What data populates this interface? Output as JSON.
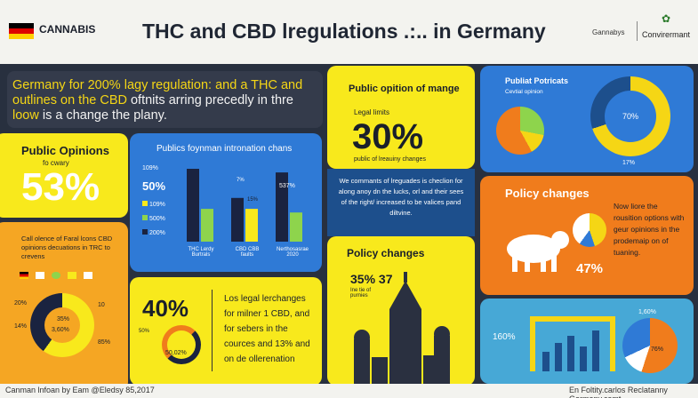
{
  "header": {
    "brand": "CANNABIS",
    "title": "THC and CBD lregulations .:.. in Germany",
    "right_label": "Gannabys",
    "right_label2": "Convirermant",
    "flag_colors": [
      "#000000",
      "#dd0000",
      "#ffce00"
    ]
  },
  "intro": {
    "text_start": "Germany for 200% lagy regulation: and a THC and outlines on the CBD",
    "text_mid": " oftnits arring precedly in thre ",
    "text_highlight": "loow",
    "text_end": " is a change the plany."
  },
  "public_opinions": {
    "title": "Public Opinions",
    "subtitle": "fo cwary",
    "value": "53%"
  },
  "blue_chart": {
    "title": "Publics foynman intronation chans",
    "legend": [
      "109%",
      "50%",
      "109%",
      "500%",
      "200%"
    ],
    "labels": [
      "7%",
      "15%",
      "537%"
    ],
    "categories": [
      "THC Lerdy\nBurtrals",
      "CBD CBB\nfaults",
      "Nerthosasrae\n2020"
    ]
  },
  "chart_data": {
    "type": "bar",
    "categories": [
      "THC Lerdy Burtrals",
      "CBD CBB faults",
      "Nerthosasrae 2020"
    ],
    "series": [
      {
        "values": [
          100,
          60,
          95
        ]
      },
      {
        "values": [
          45,
          45,
          40
        ]
      }
    ],
    "ylim": [
      0,
      100
    ]
  },
  "orange_left": {
    "title": "Call olence of Faral lcons CBD opinions decuations in TRC to crevens",
    "left_pct": "20%",
    "left_pct2": "14%",
    "inner1": "35%",
    "inner2": "3,60%",
    "right_pct": "10",
    "right_pct2": "85%"
  },
  "forty": {
    "value": "40%",
    "small": "50,02%",
    "left_small": "50%",
    "text": "Los legal lerchanges for milner 1 CBD, and for sebers in the cources and 13% and on de ollerenation"
  },
  "public_option": {
    "title": "Public opition of mange",
    "sub": "Legal limits",
    "value": "30%",
    "note": "public of lreauiny changes"
  },
  "dark_box": {
    "text": "We commants of lreguades is checlion for along anoy dn the lucks, orl and their sees of the right/ increased to be valices pand diltvine."
  },
  "policy_left": {
    "title": "Policy changes",
    "value": "35% 37",
    "sub": "Ine tie of purnies"
  },
  "public_potricats": {
    "title": "Publiat Potricats",
    "sub": "Cevtial opinion",
    "pct_ring": "70%",
    "pct_below": "17%"
  },
  "policy_right": {
    "title": "Policy changes",
    "text": "Now liore the rousition options with geur opinions in the prodemaip on of tuaning.",
    "pct": "47%"
  },
  "teal": {
    "left_pct": "160%",
    "top_pct": "1,60%",
    "right_pct": "76%"
  },
  "footer": {
    "left": "Canman lnfoan by Eam @Eledsy 85,2017",
    "right": "En Foltity.carlos Reclatanny Garmany.comt"
  }
}
